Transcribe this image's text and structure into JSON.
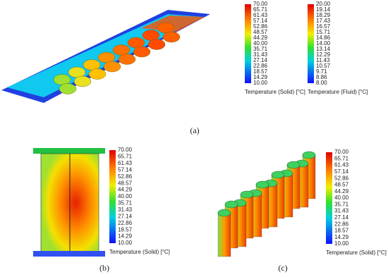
{
  "panels": [
    {
      "label": "(a)",
      "colorbars": [
        {
          "title": "Temperature (Solid) [°C]",
          "ticks": [
            "70.00",
            "65.71",
            "61.43",
            "57.14",
            "52.86",
            "48.57",
            "44.29",
            "40.00",
            "35.71",
            "31.43",
            "27.14",
            "22.86",
            "18.57",
            "14.29",
            "10.00"
          ]
        },
        {
          "title": "Temperature (Fluid) [°C]",
          "ticks": [
            "20.00",
            "19.14",
            "18.29",
            "17.43",
            "16.57",
            "15.71",
            "14.86",
            "14.00",
            "13.14",
            "12.29",
            "11.43",
            "10.57",
            "9.71",
            "8.86",
            "8.00"
          ]
        }
      ]
    },
    {
      "label": "(b)",
      "colorbars": [
        {
          "title": "Temperature (Solid) [°C]",
          "ticks": [
            "70.00",
            "65.71",
            "61.43",
            "57.14",
            "52.86",
            "48.57",
            "44.29",
            "40.00",
            "35.71",
            "31.43",
            "27.14",
            "22.86",
            "18.57",
            "14.29",
            "10.00"
          ]
        }
      ]
    },
    {
      "label": "(c)",
      "colorbars": [
        {
          "title": "Temperature (Solid) [°C]",
          "ticks": [
            "70.00",
            "65.71",
            "61.43",
            "57.14",
            "52.86",
            "48.57",
            "44.29",
            "40.00",
            "35.71",
            "31.43",
            "27.14",
            "22.86",
            "18.57",
            "14.29",
            "10.00"
          ]
        }
      ]
    }
  ]
}
